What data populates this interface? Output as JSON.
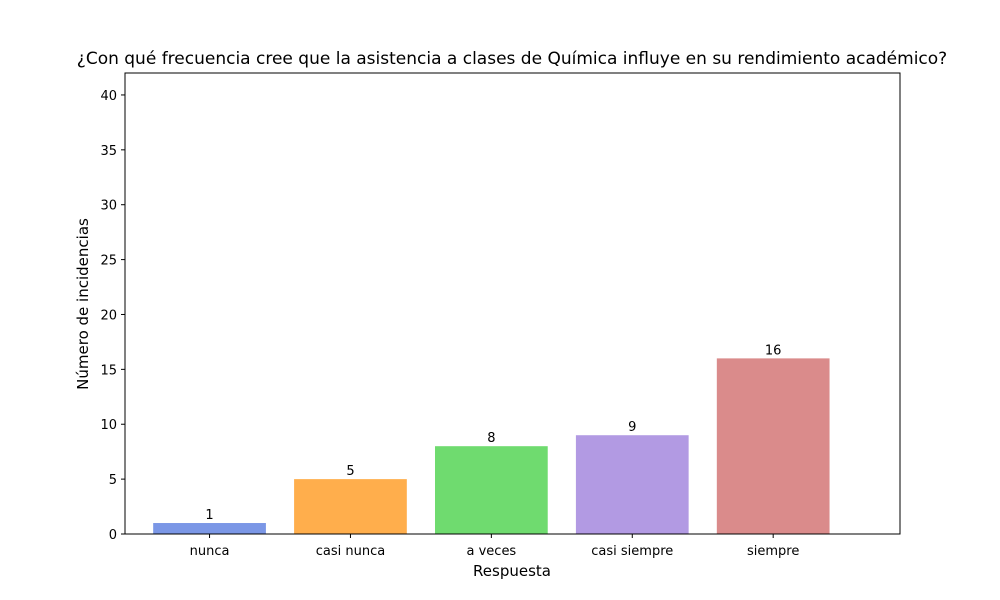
{
  "chart_data": {
    "type": "bar",
    "title": "¿Con qué frecuencia cree que la asistencia a clases de Química influye en su rendimiento académico?",
    "xlabel": "Respuesta",
    "ylabel": "Número de incidencias",
    "categories": [
      "nunca",
      "casi nunca",
      "a veces",
      "casi siempre",
      "siempre"
    ],
    "values": [
      1,
      5,
      8,
      9,
      16
    ],
    "colors": [
      "#7b97e6",
      "#ffae4c",
      "#6fdb6f",
      "#b29ae3",
      "#da8b8b"
    ],
    "ylim": [
      0,
      42
    ],
    "yticks": [
      0,
      5,
      10,
      15,
      20,
      25,
      30,
      35,
      40
    ],
    "grid": false,
    "legend": "none"
  }
}
